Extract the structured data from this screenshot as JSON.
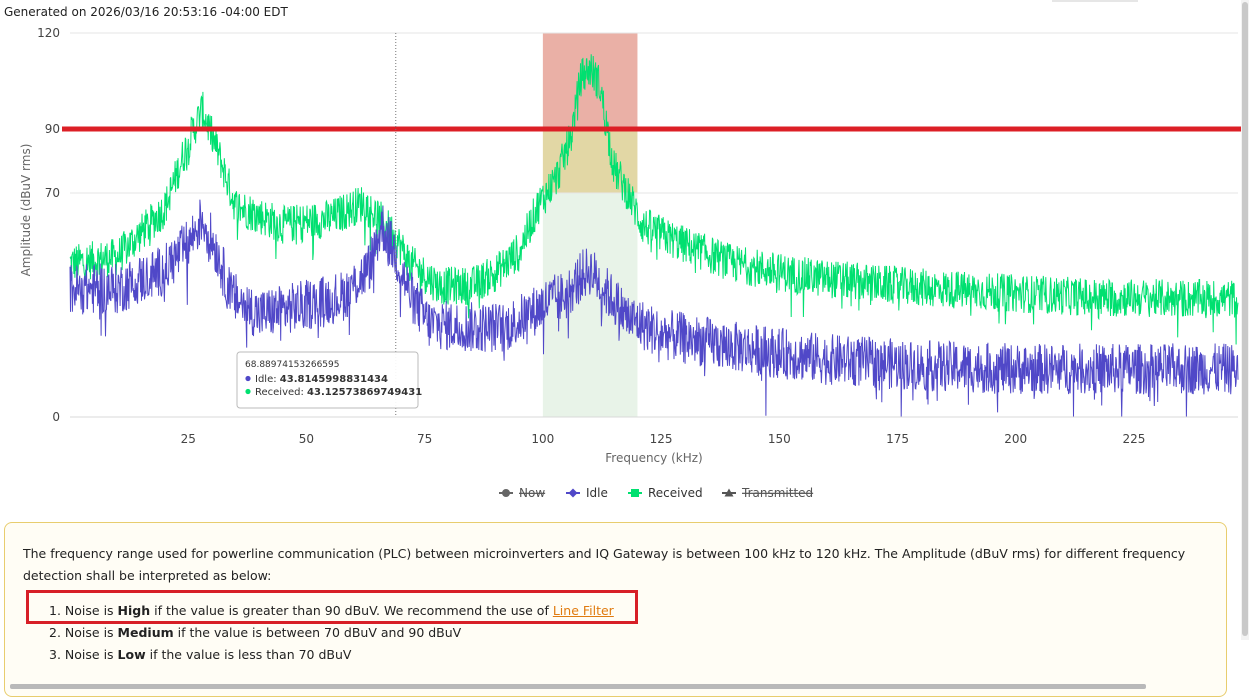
{
  "header": {
    "generated": "Generated on 2026/03/16 20:53:16 -04:00 EDT"
  },
  "chart_data": {
    "type": "line",
    "xlabel": "Frequency (kHz)",
    "ylabel": "Amplitude (dBuV rms)",
    "xlim": [
      0,
      247
    ],
    "ylim": [
      0,
      120
    ],
    "xticks": [
      25,
      50,
      75,
      100,
      125,
      150,
      175,
      200,
      225
    ],
    "yticks": [
      0,
      70,
      90,
      120
    ],
    "threshold": {
      "value": 90,
      "color": "#dc1f26"
    },
    "crosshair_x": 68.88974153266595,
    "plc_band": {
      "from": 100,
      "to": 120,
      "zones": [
        {
          "from_value": 90,
          "to_value": 120,
          "color": "#eab0a6"
        },
        {
          "from_value": 70,
          "to_value": 90,
          "color": "#e2d7a5"
        },
        {
          "from_value": 0,
          "to_value": 70,
          "color": "#e8f3e8"
        }
      ]
    },
    "series": [
      {
        "name": "Received",
        "color": "#00e070",
        "points": [
          [
            0,
            48
          ],
          [
            10,
            50
          ],
          [
            20,
            65
          ],
          [
            25,
            86
          ],
          [
            28,
            96
          ],
          [
            31,
            84
          ],
          [
            35,
            66
          ],
          [
            45,
            60
          ],
          [
            55,
            62
          ],
          [
            62,
            67
          ],
          [
            68,
            58
          ],
          [
            72,
            48
          ],
          [
            78,
            41
          ],
          [
            85,
            41
          ],
          [
            90,
            45
          ],
          [
            95,
            52
          ],
          [
            99,
            66
          ],
          [
            103,
            75
          ],
          [
            106,
            88
          ],
          [
            108,
            106
          ],
          [
            110,
            109
          ],
          [
            112,
            104
          ],
          [
            115,
            78
          ],
          [
            118,
            70
          ],
          [
            121,
            60
          ],
          [
            128,
            55
          ],
          [
            140,
            48
          ],
          [
            155,
            44
          ],
          [
            175,
            41
          ],
          [
            195,
            39
          ],
          [
            215,
            37.5
          ],
          [
            235,
            37
          ],
          [
            247,
            37
          ]
        ],
        "noise": 6
      },
      {
        "name": "Idle",
        "color": "#5048c8",
        "points": [
          [
            0,
            40
          ],
          [
            10,
            40
          ],
          [
            20,
            46
          ],
          [
            25,
            54
          ],
          [
            28,
            62
          ],
          [
            31,
            52
          ],
          [
            34,
            38
          ],
          [
            40,
            32
          ],
          [
            50,
            35
          ],
          [
            58,
            38
          ],
          [
            63,
            46
          ],
          [
            66,
            60
          ],
          [
            69,
            50
          ],
          [
            72,
            38
          ],
          [
            76,
            29
          ],
          [
            85,
            28
          ],
          [
            92,
            28
          ],
          [
            97,
            32
          ],
          [
            101,
            36
          ],
          [
            105,
            38
          ],
          [
            108,
            44
          ],
          [
            110,
            46
          ],
          [
            113,
            40
          ],
          [
            118,
            31
          ],
          [
            125,
            26
          ],
          [
            140,
            22
          ],
          [
            160,
            18
          ],
          [
            180,
            16
          ],
          [
            200,
            15
          ],
          [
            220,
            15
          ],
          [
            247,
            15
          ]
        ],
        "noise": 8
      }
    ],
    "legend": [
      {
        "label": "Now",
        "color": "#666666",
        "marker": "circle",
        "hidden": true
      },
      {
        "label": "Idle",
        "color": "#5048c8",
        "marker": "diamond",
        "hidden": false
      },
      {
        "label": "Received",
        "color": "#00e070",
        "marker": "square",
        "hidden": false
      },
      {
        "label": "Transmitted",
        "color": "#555555",
        "marker": "triangle",
        "hidden": true
      }
    ],
    "tooltip": {
      "x": "68.88974153266595",
      "rows": [
        {
          "name": "Idle",
          "value": "43.8145998831434",
          "color": "#5048c8"
        },
        {
          "name": "Received",
          "value": "43.12573869749431",
          "color": "#00e070"
        }
      ]
    }
  },
  "info": {
    "intro": "The frequency range used for powerline communication (PLC) between microinverters and IQ Gateway is between 100 kHz to 120 kHz. The Amplitude (dBuV rms) for different frequency detection shall be interpreted as below:",
    "items": [
      {
        "num": "1.",
        "pre": "Noise is",
        "level": "High",
        "post": "if the value is greater than 90 dBuV. We recommend the use of",
        "link": "Line Filter"
      },
      {
        "num": "2.",
        "pre": "Noise is",
        "level": "Medium",
        "post": "if the value is between 70 dBuV and 90 dBuV",
        "link": ""
      },
      {
        "num": "3.",
        "pre": "Noise is",
        "level": "Low",
        "post": "if the value is less than 70 dBuV",
        "link": ""
      }
    ]
  }
}
